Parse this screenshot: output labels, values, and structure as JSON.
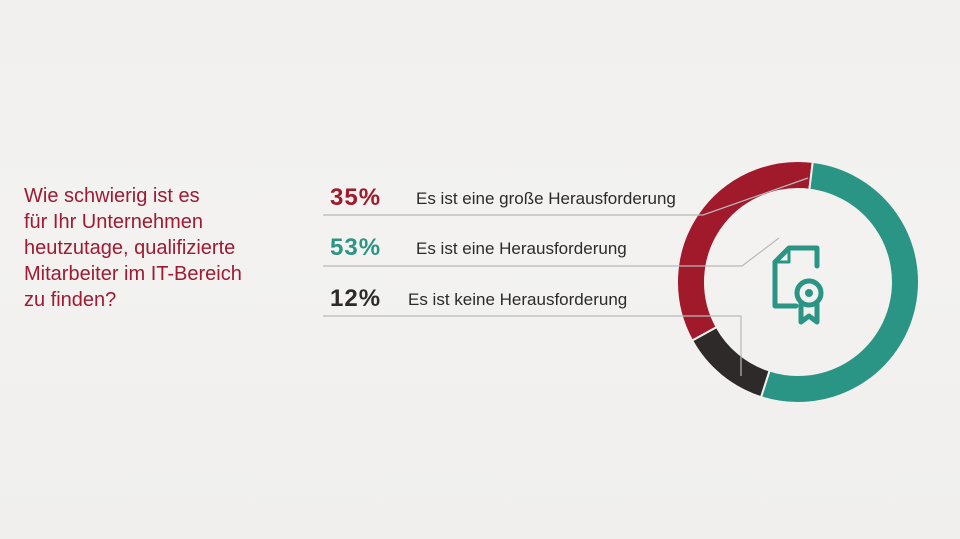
{
  "question": {
    "lines": [
      "Wie schwierig ist es",
      "für Ihr Unternehmen",
      "heutzutage, qualifizierte",
      "Mitarbeiter im IT-Bereich",
      "zu finden?"
    ]
  },
  "legend": [
    {
      "percent": "35%",
      "label": "Es ist eine große Herausforderung",
      "color": "#a01a2c"
    },
    {
      "percent": "53%",
      "label": "Es ist eine Herausforderung",
      "color": "#2a9584"
    },
    {
      "percent": "12%",
      "label": "Es ist keine Herausforderung",
      "color": "#2e2a2a"
    }
  ],
  "chart_data": {
    "type": "pie",
    "variant": "donut",
    "categories": [
      "Es ist eine große Herausforderung",
      "Es ist eine Herausforderung",
      "Es ist keine Herausforderung"
    ],
    "values": [
      35,
      53,
      12
    ],
    "unit": "%",
    "colors": [
      "#a01a2c",
      "#2a9584",
      "#2e2a2a"
    ],
    "legend_placement": "left",
    "center_icon": "certificate-document-icon"
  }
}
